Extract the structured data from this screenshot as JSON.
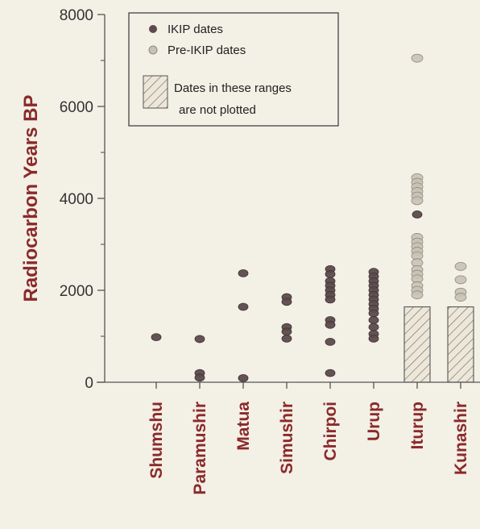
{
  "chart_data": {
    "type": "scatter",
    "title": "",
    "xlabel": "",
    "ylabel": "Radiocarbon Years BP",
    "ylim": [
      0,
      8000
    ],
    "yticks": [
      0,
      2000,
      4000,
      6000,
      8000
    ],
    "grid": false,
    "legend_position": "top-left",
    "categories": [
      "Shumshu",
      "Paramushir",
      "Matua",
      "Simushir",
      "Chirpoi",
      "Urup",
      "Iturup",
      "Kunashir"
    ],
    "series": [
      {
        "name": "IKIP dates",
        "color": "#5c4a4c",
        "points": [
          {
            "category": "Shumshu",
            "y": 980
          },
          {
            "category": "Paramushir",
            "y": 940
          },
          {
            "category": "Paramushir",
            "y": 200
          },
          {
            "category": "Paramushir",
            "y": 100
          },
          {
            "category": "Matua",
            "y": 2370
          },
          {
            "category": "Matua",
            "y": 1640
          },
          {
            "category": "Matua",
            "y": 90
          },
          {
            "category": "Simushir",
            "y": 1850
          },
          {
            "category": "Simushir",
            "y": 1750
          },
          {
            "category": "Simushir",
            "y": 1200
          },
          {
            "category": "Simushir",
            "y": 1100
          },
          {
            "category": "Simushir",
            "y": 950
          },
          {
            "category": "Chirpoi",
            "y": 2460
          },
          {
            "category": "Chirpoi",
            "y": 2350
          },
          {
            "category": "Chirpoi",
            "y": 2200
          },
          {
            "category": "Chirpoi",
            "y": 2100
          },
          {
            "category": "Chirpoi",
            "y": 2000
          },
          {
            "category": "Chirpoi",
            "y": 1900
          },
          {
            "category": "Chirpoi",
            "y": 1800
          },
          {
            "category": "Chirpoi",
            "y": 1350
          },
          {
            "category": "Chirpoi",
            "y": 1250
          },
          {
            "category": "Chirpoi",
            "y": 880
          },
          {
            "category": "Chirpoi",
            "y": 200
          },
          {
            "category": "Urup",
            "y": 2400
          },
          {
            "category": "Urup",
            "y": 2300
          },
          {
            "category": "Urup",
            "y": 2200
          },
          {
            "category": "Urup",
            "y": 2100
          },
          {
            "category": "Urup",
            "y": 2000
          },
          {
            "category": "Urup",
            "y": 1900
          },
          {
            "category": "Urup",
            "y": 1800
          },
          {
            "category": "Urup",
            "y": 1700
          },
          {
            "category": "Urup",
            "y": 1600
          },
          {
            "category": "Urup",
            "y": 1500
          },
          {
            "category": "Urup",
            "y": 1350
          },
          {
            "category": "Urup",
            "y": 1200
          },
          {
            "category": "Urup",
            "y": 1050
          },
          {
            "category": "Urup",
            "y": 950
          },
          {
            "category": "Iturup",
            "y": 3650
          }
        ]
      },
      {
        "name": "Pre-IKIP dates",
        "color": "#c8c2b4",
        "points": [
          {
            "category": "Iturup",
            "y": 7050
          },
          {
            "category": "Iturup",
            "y": 4450
          },
          {
            "category": "Iturup",
            "y": 4350
          },
          {
            "category": "Iturup",
            "y": 4250
          },
          {
            "category": "Iturup",
            "y": 4150
          },
          {
            "category": "Iturup",
            "y": 4050
          },
          {
            "category": "Iturup",
            "y": 3950
          },
          {
            "category": "Iturup",
            "y": 3150
          },
          {
            "category": "Iturup",
            "y": 3050
          },
          {
            "category": "Iturup",
            "y": 2950
          },
          {
            "category": "Iturup",
            "y": 2850
          },
          {
            "category": "Iturup",
            "y": 2750
          },
          {
            "category": "Iturup",
            "y": 2600
          },
          {
            "category": "Iturup",
            "y": 2450
          },
          {
            "category": "Iturup",
            "y": 2350
          },
          {
            "category": "Iturup",
            "y": 2250
          },
          {
            "category": "Iturup",
            "y": 2100
          },
          {
            "category": "Iturup",
            "y": 2000
          },
          {
            "category": "Iturup",
            "y": 1900
          },
          {
            "category": "Kunashir",
            "y": 2520
          },
          {
            "category": "Kunashir",
            "y": 2230
          },
          {
            "category": "Kunashir",
            "y": 1960
          },
          {
            "category": "Kunashir",
            "y": 1850
          }
        ]
      }
    ],
    "not_plotted_ranges": [
      {
        "category": "Iturup",
        "from": 0,
        "to": 1640
      },
      {
        "category": "Kunashir",
        "from": 0,
        "to": 1640
      }
    ],
    "legend": {
      "ikip_label": "IKIP dates",
      "pre_ikip_label": "Pre-IKIP dates",
      "not_plotted_line1": "Dates in these ranges",
      "not_plotted_line2": "are not plotted"
    }
  }
}
